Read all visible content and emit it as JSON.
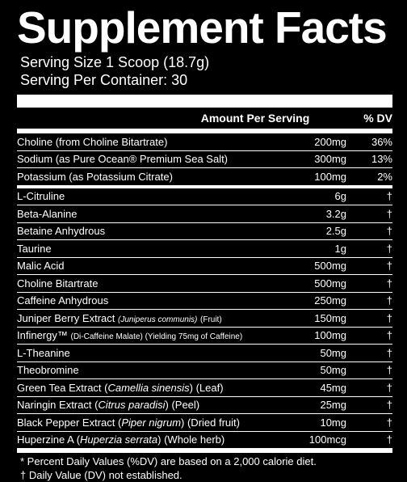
{
  "title": "Supplement Facts",
  "serving_size": "Serving Size 1 Scoop (18.7g)",
  "servings_per_container": "Serving Per Container: 30",
  "header": {
    "amount": "Amount Per Serving",
    "dv": "% DV"
  },
  "minerals": [
    {
      "name": "Choline (from Choline Bitartrate)",
      "amount": "200mg",
      "dv": "36%"
    },
    {
      "name": "Sodium (as Pure Ocean® Premium Sea Salt)",
      "amount": "300mg",
      "dv": "13%"
    },
    {
      "name": "Potassium (as Potassium Citrate)",
      "amount": "100mg",
      "dv": "2%"
    }
  ],
  "ingredients": [
    {
      "name": "L-Citruline",
      "amount": "6g",
      "dv": "†"
    },
    {
      "name": "Beta-Alanine",
      "amount": "3.2g",
      "dv": "†"
    },
    {
      "name": "Betaine Anhydrous",
      "amount": "2.5g",
      "dv": "†"
    },
    {
      "name": "Taurine",
      "amount": "1g",
      "dv": "†"
    },
    {
      "name": "Malic Acid",
      "amount": "500mg",
      "dv": "†"
    },
    {
      "name": "Choline Bitartrate",
      "amount": "500mg",
      "dv": "†"
    },
    {
      "name": "Caffeine Anhydrous",
      "amount": "250mg",
      "dv": "†"
    },
    {
      "name": "Juniper Berry Extract",
      "latin": "(Juniperus communis)",
      "extra": "(Fruit)",
      "amount": "150mg",
      "dv": "†"
    },
    {
      "name": "Infinergy™",
      "latin": "(Di-Caffeine Malate) (Yielding 75mg of Caffeine)",
      "amount": "100mg",
      "dv": "†"
    },
    {
      "name": "L-Theanine",
      "amount": "50mg",
      "dv": "†"
    },
    {
      "name": "Theobromine",
      "amount": "50mg",
      "dv": "†"
    },
    {
      "name": "Green Tea Extract (",
      "latin": "Camellia sinensis",
      "extra": ") (Leaf)",
      "amount": "45mg",
      "dv": "†"
    },
    {
      "name": "Naringin Extract (",
      "latin": "Citrus paradisi",
      "extra": ") (Peel)",
      "amount": "25mg",
      "dv": "†"
    },
    {
      "name": "Black Pepper Extract (",
      "latin": "Piper nigrum",
      "extra": ") (Dried fruit)",
      "amount": "10mg",
      "dv": "†"
    },
    {
      "name": "Huperzine A (",
      "latin": "Huperzia serrata",
      "extra": ") (Whole herb)",
      "amount": "100mcg",
      "dv": "†"
    }
  ],
  "footnotes": [
    "* Percent Daily Values (%DV) are based on a 2,000 calorie diet.",
    "† Daily Value (DV) not established."
  ]
}
